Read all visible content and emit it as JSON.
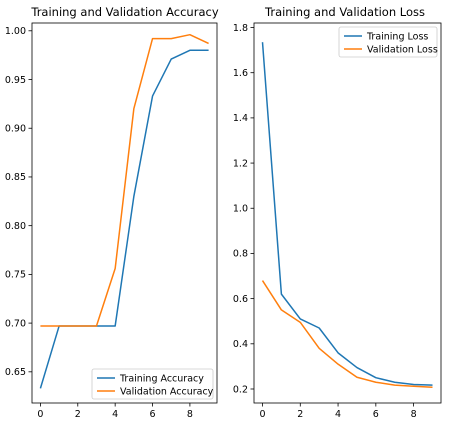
{
  "chart_data": [
    {
      "type": "line",
      "title": "Training and Validation Accuracy",
      "xlabel": "",
      "ylabel": "",
      "xlim": [
        -0.45,
        9.45
      ],
      "ylim": [
        0.618,
        1.008
      ],
      "x_ticks": [
        0,
        2,
        4,
        6,
        8
      ],
      "y_ticks": [
        0.65,
        0.7,
        0.75,
        0.8,
        0.85,
        0.9,
        0.95,
        1.0
      ],
      "y_tick_labels": [
        "0.65",
        "0.70",
        "0.75",
        "0.80",
        "0.85",
        "0.90",
        "0.95",
        "1.00"
      ],
      "legend_position": "lower-right",
      "x": [
        0,
        1,
        2,
        3,
        4,
        5,
        6,
        7,
        8,
        9
      ],
      "series": [
        {
          "name": "Training Accuracy",
          "color": "#1f77b4",
          "values": [
            0.633,
            0.697,
            0.697,
            0.697,
            0.697,
            0.83,
            0.933,
            0.971,
            0.98,
            0.98
          ]
        },
        {
          "name": "Validation Accuracy",
          "color": "#ff7f0e",
          "values": [
            0.697,
            0.697,
            0.697,
            0.697,
            0.756,
            0.92,
            0.992,
            0.992,
            0.996,
            0.987
          ]
        }
      ]
    },
    {
      "type": "line",
      "title": "Training and Validation Loss",
      "xlabel": "",
      "ylabel": "",
      "xlim": [
        -0.45,
        9.45
      ],
      "ylim": [
        0.138,
        1.82
      ],
      "x_ticks": [
        0,
        2,
        4,
        6,
        8
      ],
      "y_ticks": [
        0.2,
        0.4,
        0.6,
        0.8,
        1.0,
        1.2,
        1.4,
        1.6,
        1.8
      ],
      "y_tick_labels": [
        "0.2",
        "0.4",
        "0.6",
        "0.8",
        "1.0",
        "1.2",
        "1.4",
        "1.6",
        "1.8"
      ],
      "legend_position": "upper-right",
      "x": [
        0,
        1,
        2,
        3,
        4,
        5,
        6,
        7,
        8,
        9
      ],
      "series": [
        {
          "name": "Training Loss",
          "color": "#1f77b4",
          "values": [
            1.735,
            0.62,
            0.51,
            0.47,
            0.36,
            0.295,
            0.25,
            0.23,
            0.22,
            0.217
          ]
        },
        {
          "name": "Validation Loss",
          "color": "#ff7f0e",
          "values": [
            0.68,
            0.55,
            0.495,
            0.38,
            0.31,
            0.252,
            0.23,
            0.217,
            0.212,
            0.208
          ]
        }
      ]
    }
  ]
}
